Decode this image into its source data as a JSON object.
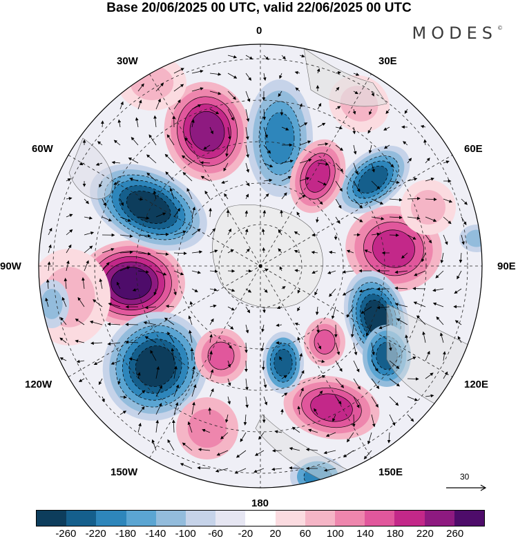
{
  "title": "Base 20/06/2025 00 UTC, valid 22/06/2025 00 UTC",
  "brand": "MODES",
  "brand_mark": "©",
  "longitude_labels": {
    "top": "0",
    "bottom": "180",
    "left": "90W",
    "right": "90E",
    "nw1": "30W",
    "nw2": "60W",
    "ne1": "30E",
    "ne2": "60E",
    "sw1": "120W",
    "sw2": "150W",
    "se1": "120E",
    "se2": "150E"
  },
  "vector_scale": {
    "label": "30"
  },
  "colorbar": {
    "colors": [
      "#0d3d5c",
      "#155f8c",
      "#2e86bb",
      "#5ba5d2",
      "#93bcdc",
      "#c6d3e9",
      "#e6e6f2",
      "#ffffff",
      "#fbdbe0",
      "#f5b5c6",
      "#ee86ad",
      "#e1579c",
      "#c32889",
      "#8e1a80",
      "#4e0c6a"
    ],
    "ticks": [
      "-260",
      "-220",
      "-180",
      "-140",
      "-100",
      "-60",
      "-20",
      "20",
      "60",
      "100",
      "140",
      "180",
      "220",
      "260"
    ]
  }
}
